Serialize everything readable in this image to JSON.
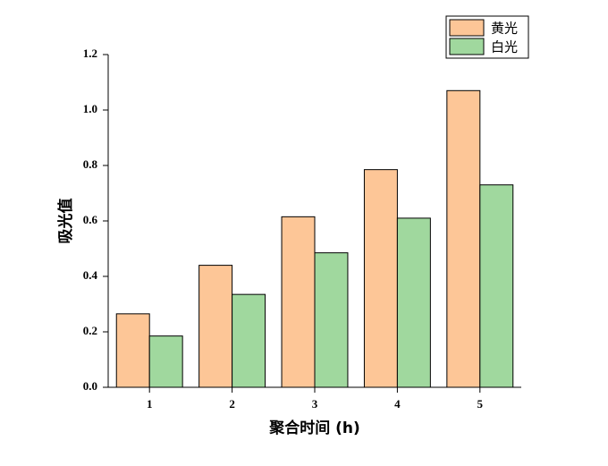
{
  "chart_data": {
    "type": "bar",
    "x_label": "聚合时间 (h)",
    "y_label": "吸光值",
    "categories": [
      "1",
      "2",
      "3",
      "4",
      "5"
    ],
    "series": [
      {
        "name": "黄光",
        "color": "#fdc697",
        "values": [
          0.265,
          0.44,
          0.615,
          0.785,
          1.07
        ]
      },
      {
        "name": "白光",
        "color": "#a0d89e",
        "values": [
          0.185,
          0.335,
          0.485,
          0.61,
          0.73
        ]
      }
    ],
    "ylim": [
      0,
      1.2
    ],
    "yticks": [
      {
        "value": 0,
        "label": "0.0"
      },
      0.2,
      0.4,
      0.6,
      0.8,
      {
        "value": 1,
        "label": "1.0"
      },
      1.2
    ],
    "legend": "upper right"
  }
}
